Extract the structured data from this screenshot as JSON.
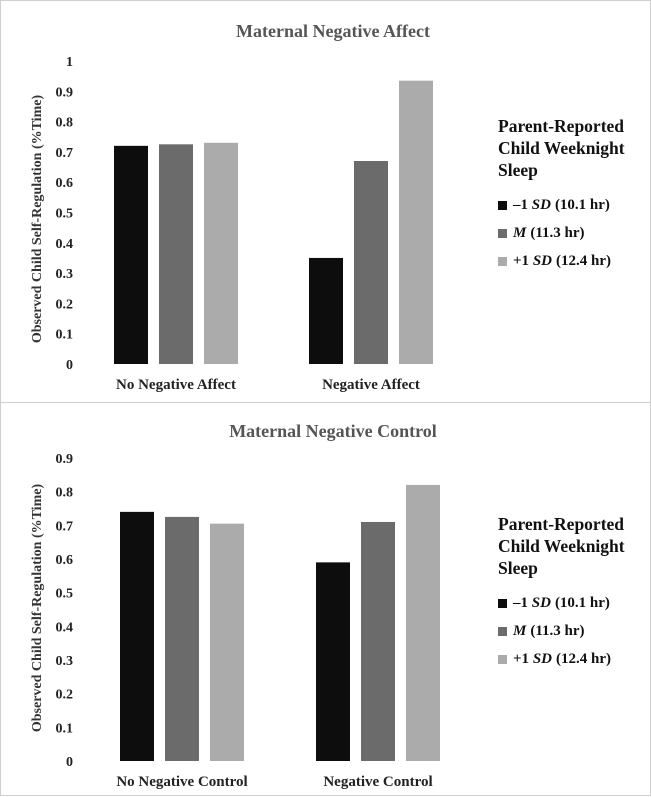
{
  "chart_data": [
    {
      "type": "bar",
      "title": "Maternal Negative Affect",
      "ylabel": "Observed Child Self-Regulation (%Time)",
      "categories": [
        "No Negative Affect",
        "Negative Affect"
      ],
      "ylim": [
        0,
        1
      ],
      "yticks": [
        "0",
        "0.1",
        "0.2",
        "0.3",
        "0.4",
        "0.5",
        "0.6",
        "0.7",
        "0.8",
        "0.9",
        "1"
      ],
      "grid": false,
      "legend_position": "right",
      "legend_title": "Parent-Reported Child Weeknight Sleep",
      "series": [
        {
          "name": "–1 SD (10.1 hr)",
          "prefix": "–1",
          "sd": "SD",
          "suffix": "(10.1 hr)",
          "color": "#0d0d0d",
          "values": [
            0.72,
            0.35
          ]
        },
        {
          "name": "M (11.3 hr)",
          "prefix": "",
          "sd": "M",
          "suffix": "(11.3 hr)",
          "color": "#6b6b6b",
          "values": [
            0.725,
            0.67
          ]
        },
        {
          "name": "+1 SD (12.4 hr)",
          "prefix": "+1",
          "sd": "SD",
          "suffix": "(12.4 hr)",
          "color": "#ababab",
          "values": [
            0.73,
            0.935
          ]
        }
      ]
    },
    {
      "type": "bar",
      "title": "Maternal Negative Control",
      "ylabel": "Observed Child Self-Regulation (%Time)",
      "categories": [
        "No Negative Control",
        "Negative Control"
      ],
      "ylim": [
        0,
        0.9
      ],
      "yticks": [
        "0",
        "0.1",
        "0.2",
        "0.3",
        "0.4",
        "0.5",
        "0.6",
        "0.7",
        "0.8",
        "0.9"
      ],
      "grid": false,
      "legend_position": "right",
      "legend_title": "Parent-Reported Child Weeknight Sleep",
      "series": [
        {
          "name": "–1 SD (10.1 hr)",
          "prefix": "–1",
          "sd": "SD",
          "suffix": "(10.1 hr)",
          "color": "#0d0d0d",
          "values": [
            0.74,
            0.59
          ]
        },
        {
          "name": "M (11.3 hr)",
          "prefix": "",
          "sd": "M",
          "suffix": "(11.3 hr)",
          "color": "#6b6b6b",
          "values": [
            0.725,
            0.71
          ]
        },
        {
          "name": "+1 SD (12.4 hr)",
          "prefix": "+1",
          "sd": "SD",
          "suffix": "(12.4 hr)",
          "color": "#ababab",
          "values": [
            0.705,
            0.82
          ]
        }
      ]
    }
  ]
}
